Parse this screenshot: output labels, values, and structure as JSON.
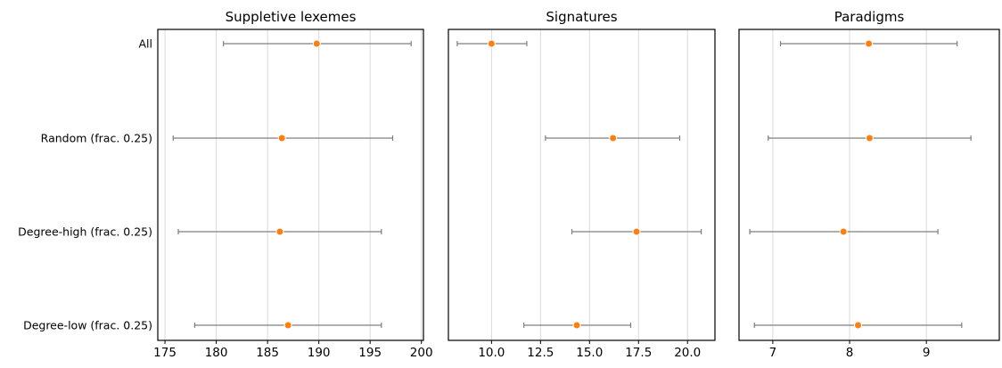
{
  "chart_data": {
    "type": "scatter",
    "categories": [
      "All",
      "Random (frac. 0.25)",
      "Degree-high (frac. 0.25)",
      "Degree-low (frac. 0.25)"
    ],
    "marker_color": "#ff7f0e",
    "errorbar_color": "#7f7f7f",
    "panels": [
      {
        "title": "Suppletive lexemes",
        "xlim": [
          174.3,
          200.2
        ],
        "xticks": [
          175,
          180,
          185,
          190,
          195,
          200
        ],
        "tick_labels": [
          "175",
          "180",
          "185",
          "190",
          "195",
          "200"
        ],
        "points": [
          {
            "category": "All",
            "value": 189.8,
            "low": 180.7,
            "high": 199.0
          },
          {
            "category": "Random (frac. 0.25)",
            "value": 186.4,
            "low": 175.8,
            "high": 197.2
          },
          {
            "category": "Degree-high (frac. 0.25)",
            "value": 186.2,
            "low": 176.3,
            "high": 196.1
          },
          {
            "category": "Degree-low (frac. 0.25)",
            "value": 187.0,
            "low": 177.9,
            "high": 196.1
          }
        ]
      },
      {
        "title": "Signatures",
        "xlim": [
          7.8,
          21.4
        ],
        "xticks": [
          10.0,
          12.5,
          15.0,
          17.5,
          20.0
        ],
        "tick_labels": [
          "10.0",
          "12.5",
          "15.0",
          "17.5",
          "20.0"
        ],
        "points": [
          {
            "category": "All",
            "value": 10.0,
            "low": 8.25,
            "high": 11.8
          },
          {
            "category": "Random (frac. 0.25)",
            "value": 16.2,
            "low": 12.75,
            "high": 19.6
          },
          {
            "category": "Degree-high (frac. 0.25)",
            "value": 17.4,
            "low": 14.1,
            "high": 20.7
          },
          {
            "category": "Degree-low (frac. 0.25)",
            "value": 14.35,
            "low": 11.65,
            "high": 17.1
          }
        ]
      },
      {
        "title": "Paradigms",
        "xlim": [
          6.56,
          9.95
        ],
        "xticks": [
          7,
          8,
          9
        ],
        "tick_labels": [
          "7",
          "8",
          "9"
        ],
        "points": [
          {
            "category": "All",
            "value": 8.25,
            "low": 7.1,
            "high": 9.4
          },
          {
            "category": "Random (frac. 0.25)",
            "value": 8.26,
            "low": 6.94,
            "high": 9.58
          },
          {
            "category": "Degree-high (frac. 0.25)",
            "value": 7.92,
            "low": 6.7,
            "high": 9.15
          },
          {
            "category": "Degree-low (frac. 0.25)",
            "value": 8.11,
            "low": 6.76,
            "high": 9.46
          }
        ]
      }
    ]
  }
}
